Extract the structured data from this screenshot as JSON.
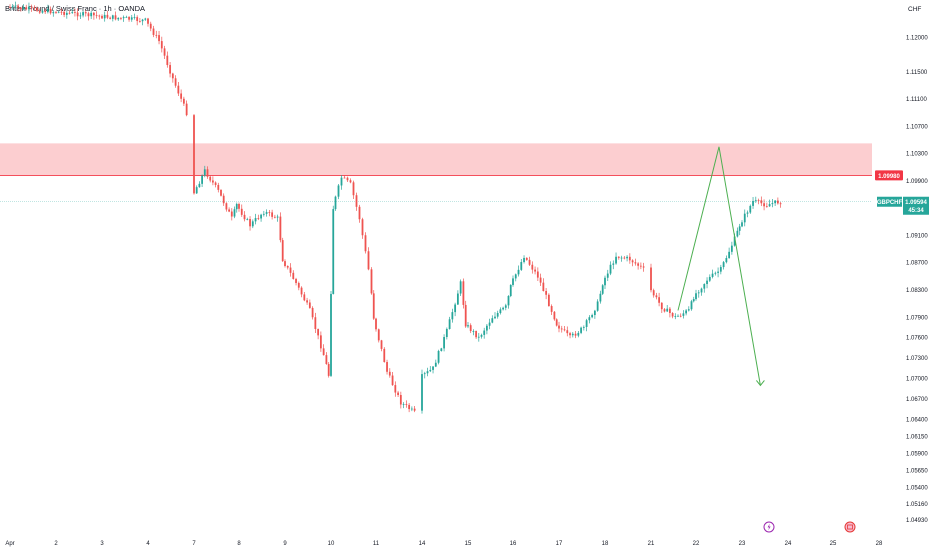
{
  "header": {
    "title": "British Pound / Swiss Franc · 1h · OANDA",
    "currency": "CHF"
  },
  "colors": {
    "up": "#26a69a",
    "down": "#ef5350",
    "zone_fill": "#fbc5c8",
    "zone_line": "#f23645",
    "price_line": "#80cbc4",
    "arrow": "#4caf50",
    "axis_text": "#131722"
  },
  "chart_data": {
    "type": "candlestick",
    "title": "British Pound / Swiss Franc · 1h · OANDA",
    "ylabel": "CHF",
    "ylim": [
      1.0478,
      1.1245
    ],
    "y_ticks": [
      "1.12000",
      "1.11500",
      "1.11100",
      "1.10700",
      "1.10300",
      "1.09900",
      "1.09500",
      "1.09100",
      "1.08700",
      "1.08300",
      "1.07900",
      "1.07600",
      "1.07300",
      "1.07000",
      "1.06700",
      "1.06400",
      "1.06150",
      "1.05900",
      "1.05650",
      "1.05400",
      "1.05160",
      "1.04930"
    ],
    "x_ticks": [
      "Apr",
      "2",
      "3",
      "4",
      "7",
      "8",
      "9",
      "10",
      "11",
      "14",
      "15",
      "16",
      "17",
      "18",
      "21",
      "22",
      "23",
      "24",
      "25",
      "28"
    ],
    "close_path": [
      {
        "d": "Apr",
        "c": 1.1245
      },
      {
        "d": "4",
        "c": 1.1225
      },
      {
        "d": "4.3",
        "c": 1.1195
      },
      {
        "d": "4.6",
        "c": 1.114
      },
      {
        "d": "4.9",
        "c": 1.109
      },
      {
        "d": "5",
        "c": 1.108
      },
      {
        "d": "5.3",
        "c": 1.1055
      },
      {
        "d": "5.6",
        "c": 1.1075
      },
      {
        "d": "5.9",
        "c": 1.1095
      },
      {
        "d": "7",
        "c": 1.0965
      },
      {
        "d": "7.3",
        "c": 1.1005
      },
      {
        "d": "7.6",
        "c": 1.0975
      },
      {
        "d": "7.9",
        "c": 1.0935
      },
      {
        "d": "8",
        "c": 1.0955
      },
      {
        "d": "8.3",
        "c": 1.0925
      },
      {
        "d": "8.6",
        "c": 1.0945
      },
      {
        "d": "8.9",
        "c": 1.0935
      },
      {
        "d": "9",
        "c": 1.0875
      },
      {
        "d": "9.3",
        "c": 1.084
      },
      {
        "d": "9.6",
        "c": 1.08
      },
      {
        "d": "9.9",
        "c": 1.0735
      },
      {
        "d": "10",
        "c": 1.0705
      },
      {
        "d": "10.1",
        "c": 1.095
      },
      {
        "d": "10.3",
        "c": 1.0995
      },
      {
        "d": "10.5",
        "c": 1.0985
      },
      {
        "d": "10.7",
        "c": 1.0935
      },
      {
        "d": "10.9",
        "c": 1.086
      },
      {
        "d": "11",
        "c": 1.079
      },
      {
        "d": "11.3",
        "c": 1.071
      },
      {
        "d": "11.6",
        "c": 1.0665
      },
      {
        "d": "11.9",
        "c": 1.065
      },
      {
        "d": "12",
        "c": 1.069
      },
      {
        "d": "12.3",
        "c": 1.066
      },
      {
        "d": "12.6",
        "c": 1.068
      },
      {
        "d": "12.9",
        "c": 1.0665
      },
      {
        "d": "14",
        "c": 1.07
      },
      {
        "d": "14.3",
        "c": 1.0715
      },
      {
        "d": "14.6",
        "c": 1.077
      },
      {
        "d": "14.9",
        "c": 1.084
      },
      {
        "d": "15",
        "c": 1.078
      },
      {
        "d": "15.3",
        "c": 1.076
      },
      {
        "d": "15.6",
        "c": 1.079
      },
      {
        "d": "15.9",
        "c": 1.0805
      },
      {
        "d": "16",
        "c": 1.0835
      },
      {
        "d": "16.3",
        "c": 1.088
      },
      {
        "d": "16.6",
        "c": 1.085
      },
      {
        "d": "16.9",
        "c": 1.08
      },
      {
        "d": "17",
        "c": 1.078
      },
      {
        "d": "17.3",
        "c": 1.076
      },
      {
        "d": "17.6",
        "c": 1.0775
      },
      {
        "d": "17.9",
        "c": 1.081
      },
      {
        "d": "18",
        "c": 1.084
      },
      {
        "d": "18.3",
        "c": 1.088
      },
      {
        "d": "18.6",
        "c": 1.0875
      },
      {
        "d": "18.9",
        "c": 1.086
      },
      {
        "d": "19",
        "c": 1.0855
      },
      {
        "d": "19.3",
        "c": 1.0865
      },
      {
        "d": "19.6",
        "c": 1.0855
      },
      {
        "d": "19.9",
        "c": 1.083
      },
      {
        "d": "21",
        "c": 1.0835
      },
      {
        "d": "21.3",
        "c": 1.0805
      },
      {
        "d": "21.6",
        "c": 1.079
      },
      {
        "d": "21.9",
        "c": 1.08
      },
      {
        "d": "22",
        "c": 1.082
      },
      {
        "d": "22.3",
        "c": 1.0845
      },
      {
        "d": "22.6",
        "c": 1.086
      },
      {
        "d": "22.9",
        "c": 1.0905
      },
      {
        "d": "23",
        "c": 1.0925
      },
      {
        "d": "23.3",
        "c": 1.096
      },
      {
        "d": "23.6",
        "c": 1.0955
      },
      {
        "d": "23.9",
        "c": 1.096
      }
    ],
    "resistance_zone": {
      "from": 1.0998,
      "to": 1.1045
    },
    "level_label": "1.09980",
    "current_price": {
      "symbol": "GBPCHF",
      "price": "1.09594",
      "countdown": "45:34",
      "value": 1.09594
    },
    "projection": [
      {
        "d": "21.6",
        "c": 1.08
      },
      {
        "d": "22.5",
        "c": 1.104
      },
      {
        "d": "23.4",
        "c": 1.069
      }
    ],
    "grid": false
  }
}
